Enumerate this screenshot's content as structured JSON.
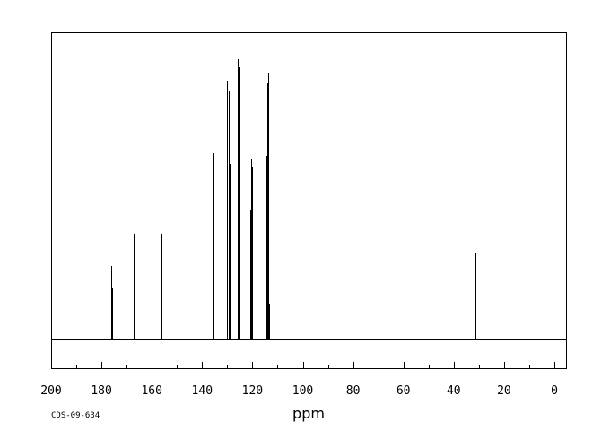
{
  "chart_data": {
    "type": "line",
    "xlabel": "ppm",
    "xlim": [
      200,
      -5
    ],
    "x_direction": "reversed",
    "ticks_labeled": [
      200,
      180,
      160,
      140,
      120,
      100,
      80,
      60,
      40,
      20,
      0
    ],
    "spectrum_code": "CDS-09-634",
    "grid": false,
    "legend": "none",
    "peaks": [
      {
        "ppm": 176.0,
        "intensity": 0.27
      },
      {
        "ppm": 175.7,
        "intensity": 0.19
      },
      {
        "ppm": 167.3,
        "intensity": 0.39
      },
      {
        "ppm": 156.2,
        "intensity": 0.39
      },
      {
        "ppm": 135.9,
        "intensity": 0.69
      },
      {
        "ppm": 135.6,
        "intensity": 0.67
      },
      {
        "ppm": 130.0,
        "intensity": 0.96
      },
      {
        "ppm": 129.5,
        "intensity": 0.92
      },
      {
        "ppm": 129.2,
        "intensity": 0.65
      },
      {
        "ppm": 125.9,
        "intensity": 1.04
      },
      {
        "ppm": 125.5,
        "intensity": 1.01
      },
      {
        "ppm": 121.0,
        "intensity": 0.48
      },
      {
        "ppm": 120.6,
        "intensity": 0.67
      },
      {
        "ppm": 120.1,
        "intensity": 0.64
      },
      {
        "ppm": 114.6,
        "intensity": 0.68
      },
      {
        "ppm": 114.2,
        "intensity": 0.95
      },
      {
        "ppm": 113.8,
        "intensity": 0.99
      },
      {
        "ppm": 113.4,
        "intensity": 0.13
      },
      {
        "ppm": 31.5,
        "intensity": 0.32
      }
    ]
  }
}
